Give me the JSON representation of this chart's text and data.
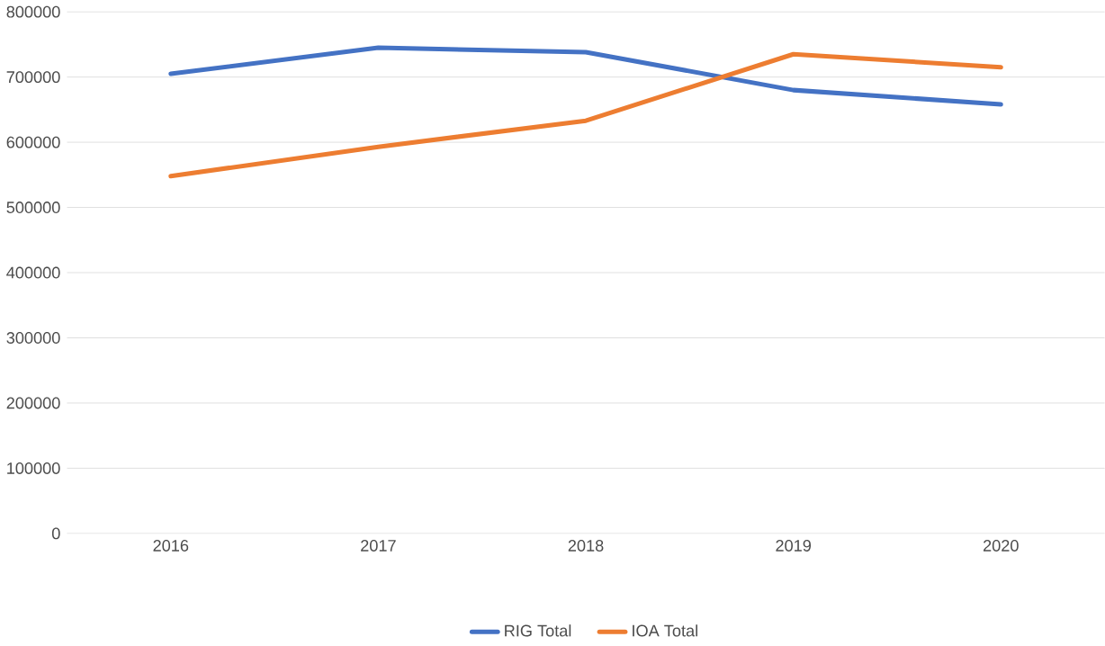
{
  "chart_data": {
    "type": "line",
    "categories": [
      "2016",
      "2017",
      "2018",
      "2019",
      "2020"
    ],
    "series": [
      {
        "name": "RIG Total",
        "color": "#4472c4",
        "values": [
          705000,
          745000,
          738000,
          680000,
          658000
        ]
      },
      {
        "name": "IOA Total",
        "color": "#ed7d31",
        "values": [
          548000,
          593000,
          633000,
          735000,
          715000
        ]
      }
    ],
    "ylim": [
      0,
      800000
    ],
    "yticks": [
      0,
      100000,
      200000,
      300000,
      400000,
      500000,
      600000,
      700000,
      800000
    ],
    "grid": "y",
    "legend": "bottom",
    "line_style": "solid",
    "marker": "none"
  }
}
